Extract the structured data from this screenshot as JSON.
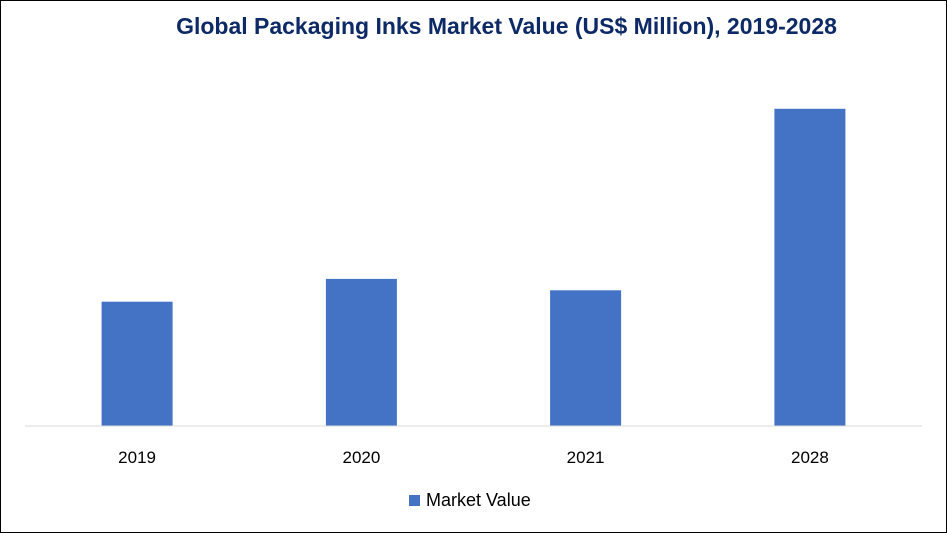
{
  "chart_data": {
    "type": "bar",
    "title": "Global Packaging Inks Market Value (US$ Million), 2019-2028",
    "xlabel": "",
    "ylabel": "",
    "categories": [
      "2019",
      "2020",
      "2021",
      "2028"
    ],
    "series": [
      {
        "name": "Market Value",
        "values": [
          38,
          45,
          41.5,
          97
        ]
      }
    ],
    "ylim": [
      0,
      100
    ],
    "grid": false,
    "legend_position": "bottom",
    "colors": {
      "bar": "#4472c4",
      "title": "#0d2a66",
      "axis": "#d9d9d9"
    }
  }
}
